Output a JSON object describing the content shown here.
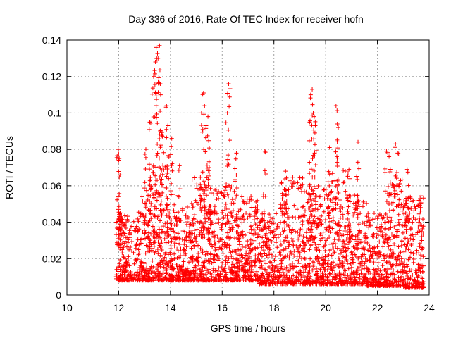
{
  "chart_data": {
    "type": "scatter",
    "title": "Day 336 of 2016, Rate Of TEC Index for receiver hofn",
    "xlabel": "GPS time / hours",
    "ylabel": "ROTI / TECUs",
    "xlim": [
      10,
      24
    ],
    "ylim": [
      0,
      0.14
    ],
    "x_ticks": [
      "10",
      "12",
      "14",
      "16",
      "18",
      "20",
      "22",
      "24"
    ],
    "y_ticks": [
      "0",
      "0.02",
      "0.04",
      "0.06",
      "0.08",
      "0.1",
      "0.12",
      "0.14"
    ],
    "grid": true,
    "marker": "+",
    "color": "#ff0000",
    "peaks": [
      {
        "x": 11.98,
        "y": 0.08
      },
      {
        "x": 12.02,
        "y": 0.075
      },
      {
        "x": 12.05,
        "y": 0.066
      },
      {
        "x": 13.05,
        "y": 0.08
      },
      {
        "x": 13.2,
        "y": 0.095
      },
      {
        "x": 13.35,
        "y": 0.12
      },
      {
        "x": 13.42,
        "y": 0.128
      },
      {
        "x": 13.45,
        "y": 0.136
      },
      {
        "x": 13.52,
        "y": 0.13
      },
      {
        "x": 13.58,
        "y": 0.137
      },
      {
        "x": 13.62,
        "y": 0.11
      },
      {
        "x": 13.7,
        "y": 0.087
      },
      {
        "x": 13.85,
        "y": 0.104
      },
      {
        "x": 13.9,
        "y": 0.093
      },
      {
        "x": 14.05,
        "y": 0.086
      },
      {
        "x": 14.35,
        "y": 0.071
      },
      {
        "x": 15.2,
        "y": 0.1
      },
      {
        "x": 15.28,
        "y": 0.111
      },
      {
        "x": 15.32,
        "y": 0.104
      },
      {
        "x": 15.38,
        "y": 0.093
      },
      {
        "x": 15.45,
        "y": 0.098
      },
      {
        "x": 15.5,
        "y": 0.07
      },
      {
        "x": 16.2,
        "y": 0.1
      },
      {
        "x": 16.25,
        "y": 0.116
      },
      {
        "x": 16.55,
        "y": 0.078
      },
      {
        "x": 17.65,
        "y": 0.079
      },
      {
        "x": 18.45,
        "y": 0.068
      },
      {
        "x": 19.38,
        "y": 0.095
      },
      {
        "x": 19.42,
        "y": 0.11
      },
      {
        "x": 19.48,
        "y": 0.113
      },
      {
        "x": 19.52,
        "y": 0.1
      },
      {
        "x": 19.56,
        "y": 0.098
      },
      {
        "x": 19.6,
        "y": 0.093
      },
      {
        "x": 20.15,
        "y": 0.081
      },
      {
        "x": 20.4,
        "y": 0.104
      },
      {
        "x": 20.45,
        "y": 0.094
      },
      {
        "x": 20.9,
        "y": 0.069
      },
      {
        "x": 21.25,
        "y": 0.084
      },
      {
        "x": 22.35,
        "y": 0.079
      },
      {
        "x": 22.45,
        "y": 0.076
      },
      {
        "x": 22.7,
        "y": 0.083
      },
      {
        "x": 22.78,
        "y": 0.078
      },
      {
        "x": 23.15,
        "y": 0.069
      },
      {
        "x": 23.65,
        "y": 0.053
      }
    ],
    "bands": [
      {
        "x0": 11.9,
        "x1": 12.6,
        "ymin": 0.008,
        "ymax": 0.045
      },
      {
        "x0": 12.6,
        "x1": 13.2,
        "ymin": 0.008,
        "ymax": 0.055
      },
      {
        "x0": 13.2,
        "x1": 13.9,
        "ymin": 0.008,
        "ymax": 0.075
      },
      {
        "x0": 13.9,
        "x1": 14.8,
        "ymin": 0.008,
        "ymax": 0.05
      },
      {
        "x0": 14.8,
        "x1": 15.6,
        "ymin": 0.008,
        "ymax": 0.065
      },
      {
        "x0": 15.6,
        "x1": 16.6,
        "ymin": 0.008,
        "ymax": 0.06
      },
      {
        "x0": 16.6,
        "x1": 17.4,
        "ymin": 0.008,
        "ymax": 0.055
      },
      {
        "x0": 17.4,
        "x1": 18.2,
        "ymin": 0.006,
        "ymax": 0.045
      },
      {
        "x0": 18.2,
        "x1": 19.2,
        "ymin": 0.006,
        "ymax": 0.065
      },
      {
        "x0": 19.2,
        "x1": 19.9,
        "ymin": 0.006,
        "ymax": 0.06
      },
      {
        "x0": 19.9,
        "x1": 20.8,
        "ymin": 0.006,
        "ymax": 0.07
      },
      {
        "x0": 20.8,
        "x1": 21.6,
        "ymin": 0.006,
        "ymax": 0.055
      },
      {
        "x0": 21.6,
        "x1": 22.4,
        "ymin": 0.005,
        "ymax": 0.045
      },
      {
        "x0": 22.4,
        "x1": 23.0,
        "ymin": 0.005,
        "ymax": 0.065
      },
      {
        "x0": 23.0,
        "x1": 23.8,
        "ymin": 0.004,
        "ymax": 0.055
      }
    ]
  }
}
